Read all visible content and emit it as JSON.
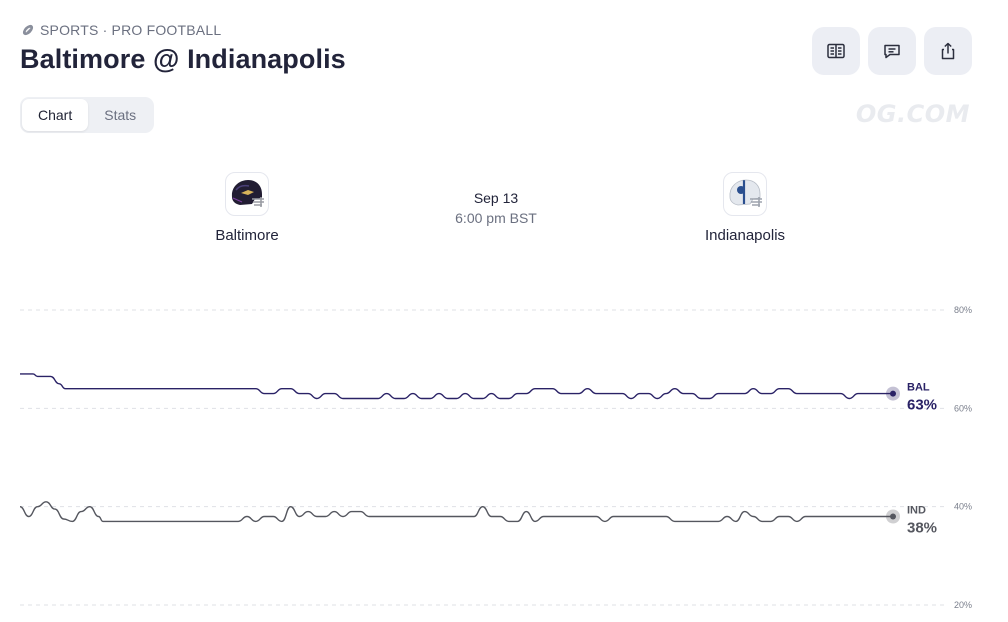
{
  "header": {
    "breadcrumb": "SPORTS · PRO FOOTBALL",
    "title": "Baltimore @ Indianapolis"
  },
  "actions": [
    {
      "icon": "book-icon"
    },
    {
      "icon": "comment-icon"
    },
    {
      "icon": "share-icon"
    }
  ],
  "tabs": [
    {
      "label": "Chart",
      "active": true
    },
    {
      "label": "Stats",
      "active": false
    }
  ],
  "watermark": "OG.COM",
  "game": {
    "away": {
      "name": "Baltimore",
      "abbr": "BAL",
      "color": "#2a2266"
    },
    "home": {
      "name": "Indianapolis",
      "abbr": "IND",
      "color": "#55575f"
    },
    "date": "Sep 13",
    "time": "6:00 pm BST"
  },
  "chart_data": {
    "type": "line",
    "y_ticks": [
      {
        "value": 80,
        "label": "80%"
      },
      {
        "value": 60,
        "label": "60%"
      },
      {
        "value": 40,
        "label": "40%"
      },
      {
        "value": 20,
        "label": "20%"
      }
    ],
    "ylim": [
      20,
      80
    ],
    "x_range": [
      0,
      100
    ],
    "grid": true,
    "series": [
      {
        "name": "BAL",
        "end_label": "63%",
        "color": "#2a2266",
        "points": [
          [
            0,
            67
          ],
          [
            1.5,
            67
          ],
          [
            2,
            66.5
          ],
          [
            3.5,
            66.5
          ],
          [
            4.5,
            65
          ],
          [
            5.2,
            64
          ],
          [
            6.5,
            64
          ],
          [
            27,
            64
          ],
          [
            28,
            63
          ],
          [
            29,
            63
          ],
          [
            30,
            64
          ],
          [
            31,
            64
          ],
          [
            32,
            63
          ],
          [
            33,
            63
          ],
          [
            34,
            62
          ],
          [
            35,
            63
          ],
          [
            36,
            63
          ],
          [
            37,
            62
          ],
          [
            41,
            62
          ],
          [
            42,
            63
          ],
          [
            43,
            62
          ],
          [
            44,
            62
          ],
          [
            45,
            63
          ],
          [
            46,
            62
          ],
          [
            47,
            62
          ],
          [
            48,
            63
          ],
          [
            49,
            62
          ],
          [
            50,
            62
          ],
          [
            51,
            63
          ],
          [
            52,
            62
          ],
          [
            53,
            62
          ],
          [
            54,
            63
          ],
          [
            55,
            62
          ],
          [
            56,
            62
          ],
          [
            57,
            63
          ],
          [
            58,
            63
          ],
          [
            59,
            64
          ],
          [
            61,
            64
          ],
          [
            62,
            63
          ],
          [
            64,
            63
          ],
          [
            65,
            64
          ],
          [
            66,
            63
          ],
          [
            69,
            63
          ],
          [
            70,
            62
          ],
          [
            71,
            63
          ],
          [
            72,
            63
          ],
          [
            73,
            62
          ],
          [
            74,
            63
          ],
          [
            75,
            64
          ],
          [
            76,
            63
          ],
          [
            77,
            63
          ],
          [
            78,
            62
          ],
          [
            79,
            62
          ],
          [
            80,
            63
          ],
          [
            83,
            63
          ],
          [
            84,
            64
          ],
          [
            85,
            63
          ],
          [
            86,
            63
          ],
          [
            87,
            64
          ],
          [
            88,
            64
          ],
          [
            89,
            63
          ],
          [
            94,
            63
          ],
          [
            95,
            62
          ],
          [
            96,
            63
          ],
          [
            100,
            63
          ]
        ]
      },
      {
        "name": "IND",
        "end_label": "38%",
        "color": "#55575f",
        "points": [
          [
            0,
            40
          ],
          [
            1,
            38
          ],
          [
            2,
            40
          ],
          [
            3,
            41
          ],
          [
            4,
            39.5
          ],
          [
            5,
            37.5
          ],
          [
            6,
            37
          ],
          [
            7,
            39
          ],
          [
            8,
            40
          ],
          [
            9,
            38
          ],
          [
            9.5,
            37
          ],
          [
            25,
            37
          ],
          [
            26,
            38
          ],
          [
            27,
            37
          ],
          [
            28,
            38
          ],
          [
            29,
            38
          ],
          [
            30,
            37
          ],
          [
            31,
            40
          ],
          [
            32,
            38
          ],
          [
            33,
            39
          ],
          [
            34,
            38
          ],
          [
            35,
            38
          ],
          [
            36,
            39
          ],
          [
            37,
            38
          ],
          [
            38,
            39
          ],
          [
            39,
            39
          ],
          [
            40,
            38
          ],
          [
            52,
            38
          ],
          [
            53,
            40
          ],
          [
            54,
            38
          ],
          [
            55,
            38
          ],
          [
            56,
            37
          ],
          [
            57,
            37
          ],
          [
            58,
            39
          ],
          [
            59,
            37
          ],
          [
            60,
            38
          ],
          [
            66,
            38
          ],
          [
            67,
            37
          ],
          [
            68,
            38
          ],
          [
            74,
            38
          ],
          [
            75,
            37
          ],
          [
            80,
            37
          ],
          [
            81,
            38
          ],
          [
            82,
            37
          ],
          [
            83,
            39
          ],
          [
            84,
            38
          ],
          [
            85,
            37
          ],
          [
            86,
            37
          ],
          [
            87,
            38
          ],
          [
            88,
            38
          ],
          [
            89,
            37
          ],
          [
            90,
            38
          ],
          [
            100,
            38
          ]
        ]
      }
    ]
  }
}
